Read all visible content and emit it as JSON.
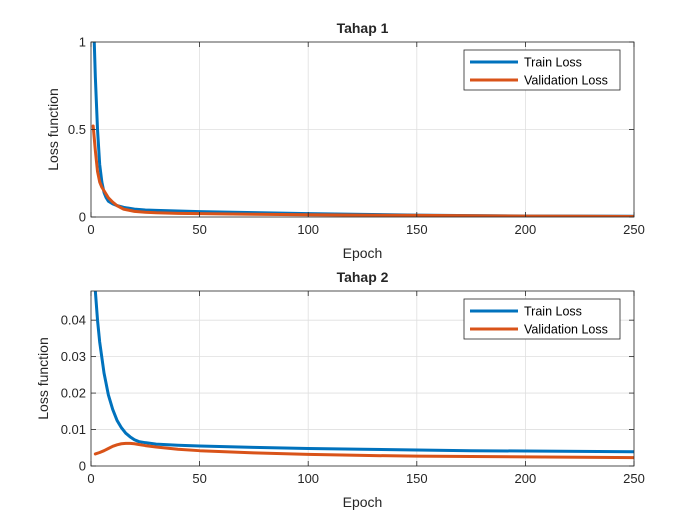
{
  "chart_data": [
    {
      "type": "line",
      "title": "Tahap 1",
      "xlabel": "Epoch",
      "ylabel": "Loss function",
      "xlim": [
        0,
        250
      ],
      "ylim": [
        0,
        1
      ],
      "xticks": [
        0,
        50,
        100,
        150,
        200,
        250
      ],
      "yticks": [
        0,
        0.5,
        1
      ],
      "xtick_labels": [
        "0",
        "50",
        "100",
        "150",
        "200",
        "250"
      ],
      "ytick_labels": [
        "0",
        "0.5",
        "1"
      ],
      "grid": true,
      "legend_position": "top-right",
      "series": [
        {
          "name": "Train Loss",
          "color": "#0072BD",
          "x": [
            1,
            2,
            3,
            4,
            5,
            6,
            7,
            8,
            10,
            12,
            15,
            20,
            25,
            30,
            40,
            50,
            75,
            100,
            125,
            150,
            175,
            200,
            225,
            250
          ],
          "y": [
            1.2,
            0.8,
            0.5,
            0.3,
            0.2,
            0.14,
            0.11,
            0.09,
            0.075,
            0.065,
            0.055,
            0.045,
            0.04,
            0.038,
            0.034,
            0.031,
            0.025,
            0.019,
            0.015,
            0.011,
            0.008,
            0.006,
            0.005,
            0.004
          ]
        },
        {
          "name": "Validation Loss",
          "color": "#D95319",
          "x": [
            1,
            2,
            3,
            4,
            5,
            6,
            7,
            8,
            10,
            12,
            15,
            20,
            25,
            30,
            40,
            50,
            75,
            100,
            125,
            150,
            175,
            200,
            225,
            250
          ],
          "y": [
            0.52,
            0.38,
            0.26,
            0.2,
            0.17,
            0.15,
            0.13,
            0.11,
            0.085,
            0.065,
            0.045,
            0.032,
            0.027,
            0.024,
            0.021,
            0.019,
            0.016,
            0.013,
            0.011,
            0.009,
            0.007,
            0.005,
            0.004,
            0.003
          ]
        }
      ]
    },
    {
      "type": "line",
      "title": "Tahap 2",
      "xlabel": "Epoch",
      "ylabel": "Loss function",
      "xlim": [
        0,
        250
      ],
      "ylim": [
        0,
        0.048
      ],
      "xticks": [
        0,
        50,
        100,
        150,
        200,
        250
      ],
      "yticks": [
        0,
        0.01,
        0.02,
        0.03,
        0.04
      ],
      "xtick_labels": [
        "0",
        "50",
        "100",
        "150",
        "200",
        "250"
      ],
      "ytick_labels": [
        "0",
        "0.01",
        "0.02",
        "0.03",
        "0.04"
      ],
      "grid": true,
      "legend_position": "top-right",
      "series": [
        {
          "name": "Train Loss",
          "color": "#0072BD",
          "x": [
            2,
            3,
            4,
            6,
            8,
            10,
            12,
            14,
            16,
            18,
            20,
            22,
            25,
            30,
            40,
            50,
            75,
            100,
            125,
            150,
            175,
            200,
            225,
            250
          ],
          "y": [
            0.048,
            0.04,
            0.034,
            0.0255,
            0.0195,
            0.0155,
            0.0125,
            0.0105,
            0.009,
            0.008,
            0.0072,
            0.0067,
            0.0064,
            0.006,
            0.0057,
            0.0055,
            0.0051,
            0.0048,
            0.0046,
            0.0044,
            0.0042,
            0.0041,
            0.004,
            0.0039
          ]
        },
        {
          "name": "Validation Loss",
          "color": "#D95319",
          "x": [
            2,
            4,
            6,
            8,
            10,
            12,
            14,
            16,
            18,
            20,
            22,
            25,
            30,
            40,
            50,
            75,
            100,
            125,
            150,
            175,
            200,
            225,
            250
          ],
          "y": [
            0.0033,
            0.0037,
            0.0042,
            0.0048,
            0.0054,
            0.0058,
            0.0061,
            0.0062,
            0.0062,
            0.0061,
            0.0059,
            0.0056,
            0.0052,
            0.0046,
            0.0042,
            0.0036,
            0.0032,
            0.0029,
            0.0027,
            0.0026,
            0.0025,
            0.0024,
            0.0023
          ]
        }
      ]
    }
  ]
}
